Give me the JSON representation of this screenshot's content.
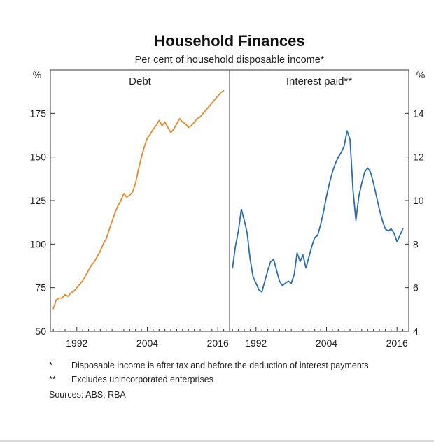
{
  "chart_data": {
    "type": "line",
    "title": "Household Finances",
    "subtitle": "Per cent of household disposable income*",
    "panels": [
      {
        "label": "Debt",
        "axis_side": "left",
        "unit_label": "%",
        "ylim": [
          50,
          200
        ],
        "yticks": [
          50,
          75,
          100,
          125,
          150,
          175
        ],
        "xlim": [
          1987.5,
          2018
        ],
        "xticks": [
          1992,
          2004,
          2016
        ],
        "series": [
          {
            "color": "#e8892b",
            "x": [
              1988.0,
              1988.5,
              1989.0,
              1989.5,
              1990.0,
              1990.5,
              1991.0,
              1991.5,
              1992.0,
              1992.5,
              1993.0,
              1993.5,
              1994.0,
              1994.5,
              1995.0,
              1995.5,
              1996.0,
              1996.5,
              1997.0,
              1997.5,
              1998.0,
              1998.5,
              1999.0,
              1999.5,
              2000.0,
              2000.5,
              2001.0,
              2001.5,
              2002.0,
              2002.5,
              2003.0,
              2003.5,
              2004.0,
              2004.5,
              2005.0,
              2005.5,
              2006.0,
              2006.5,
              2007.0,
              2007.5,
              2008.0,
              2008.5,
              2009.0,
              2009.5,
              2010.0,
              2010.5,
              2011.0,
              2011.5,
              2012.0,
              2012.5,
              2013.0,
              2013.5,
              2014.0,
              2014.5,
              2015.0,
              2015.5,
              2016.0,
              2016.5,
              2017.0
            ],
            "values": [
              63,
              68,
              69,
              69,
              71,
              70,
              72,
              73,
              75,
              77,
              79,
              82,
              85,
              88,
              90,
              93,
              96,
              100,
              103,
              108,
              113,
              118,
              122,
              125,
              129,
              127,
              128,
              130,
              135,
              143,
              150,
              156,
              161,
              163,
              166,
              168,
              171,
              168,
              170,
              167,
              164,
              166,
              169,
              172,
              170,
              169,
              167,
              168,
              170,
              172,
              173,
              175,
              177,
              179,
              181,
              183,
              185,
              187,
              188
            ]
          }
        ]
      },
      {
        "label": "Interest paid**",
        "axis_side": "right",
        "unit_label": "%",
        "ylim": [
          4,
          16
        ],
        "yticks": [
          4,
          6,
          8,
          10,
          12,
          14
        ],
        "xlim": [
          1987.5,
          2018
        ],
        "xticks": [
          1992,
          2004,
          2016
        ],
        "series": [
          {
            "color": "#2a6db5",
            "x": [
              1988.0,
              1988.5,
              1989.0,
              1989.5,
              1990.0,
              1990.5,
              1991.0,
              1991.5,
              1992.0,
              1992.5,
              1993.0,
              1993.5,
              1994.0,
              1994.5,
              1995.0,
              1995.5,
              1996.0,
              1996.5,
              1997.0,
              1997.5,
              1998.0,
              1998.5,
              1999.0,
              1999.5,
              2000.0,
              2000.5,
              2001.0,
              2001.5,
              2002.0,
              2002.5,
              2003.0,
              2003.5,
              2004.0,
              2004.5,
              2005.0,
              2005.5,
              2006.0,
              2006.5,
              2007.0,
              2007.5,
              2008.0,
              2008.5,
              2009.0,
              2009.5,
              2010.0,
              2010.5,
              2011.0,
              2011.5,
              2012.0,
              2012.5,
              2013.0,
              2013.5,
              2014.0,
              2014.5,
              2015.0,
              2015.5,
              2016.0,
              2016.5,
              2017.0
            ],
            "values": [
              6.9,
              7.9,
              8.6,
              9.6,
              9.1,
              8.5,
              7.3,
              6.5,
              6.2,
              5.9,
              5.8,
              6.3,
              6.8,
              7.2,
              7.3,
              6.8,
              6.3,
              6.1,
              6.2,
              6.3,
              6.2,
              6.6,
              7.6,
              7.2,
              7.5,
              6.9,
              7.4,
              7.9,
              8.3,
              8.4,
              8.9,
              9.5,
              10.2,
              10.8,
              11.3,
              11.7,
              12.0,
              12.2,
              12.5,
              13.2,
              12.8,
              10.5,
              9.1,
              10.2,
              10.8,
              11.3,
              11.5,
              11.3,
              10.8,
              10.2,
              9.6,
              9.1,
              8.7,
              8.6,
              8.7,
              8.5,
              8.1,
              8.4,
              8.7
            ]
          }
        ]
      }
    ],
    "footnotes": [
      {
        "mark": "*",
        "text": "Disposable income is after tax and before the deduction of interest payments"
      },
      {
        "mark": "**",
        "text": "Excludes unincorporated enterprises"
      }
    ],
    "sources": "Sources:   ABS; RBA"
  }
}
